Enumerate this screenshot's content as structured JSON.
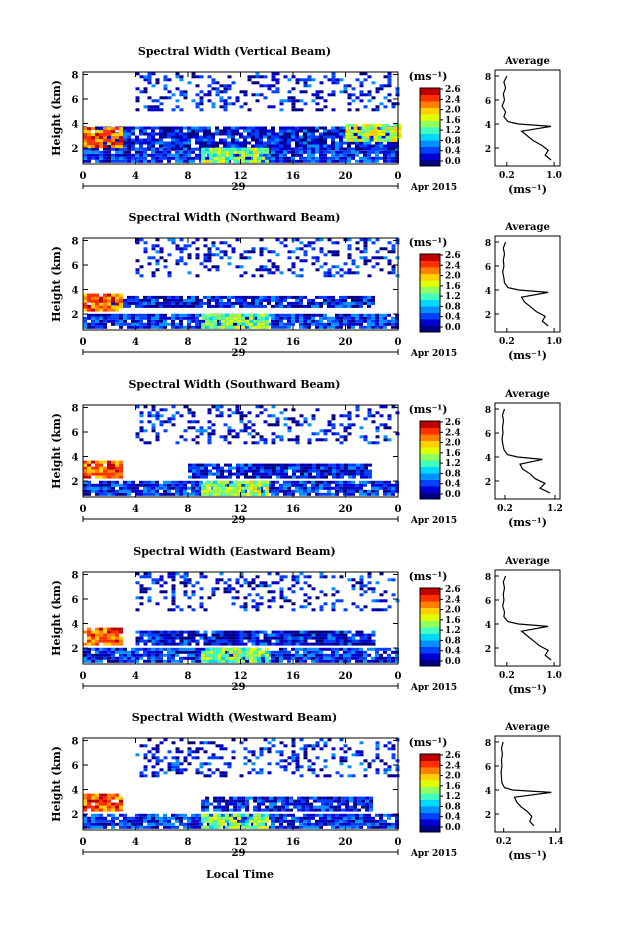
{
  "figure": {
    "xlabel": "Local Time",
    "date_label": "Apr 2015",
    "day_label": "29"
  },
  "colorbar": {
    "unit_label": "(ms⁻¹)",
    "ticks": [
      "2.6",
      "2.4",
      "2.0",
      "1.6",
      "1.2",
      "0.8",
      "0.4",
      "0.0"
    ],
    "colors": [
      "#000080",
      "#0000d0",
      "#0040ff",
      "#0090ff",
      "#00d8ff",
      "#40ffc0",
      "#90ff60",
      "#e0ff00",
      "#ffd000",
      "#ff8000",
      "#ff3000",
      "#c00000"
    ]
  },
  "chart_data": [
    {
      "type": "heatmap",
      "title": "Spectral Width (Vertical Beam)",
      "ylabel": "Height (km)",
      "xticks": [
        "0",
        "4",
        "8",
        "12",
        "16",
        "20",
        "0"
      ],
      "yticks": [
        "2",
        "4",
        "6",
        "8"
      ],
      "xlim": [
        0,
        24
      ],
      "ylim": [
        0.7,
        8.2
      ],
      "layers": [
        {
          "t0": 0,
          "t1": 24,
          "z0": 0.8,
          "z1": 1.8,
          "v": 0.4
        },
        {
          "t0": 0,
          "t1": 24,
          "z0": 1.8,
          "z1": 3.6,
          "v": 0.3
        },
        {
          "t0": 9,
          "t1": 14,
          "z0": 0.8,
          "z1": 1.8,
          "v": 1.4
        },
        {
          "t0": 0,
          "t1": 3,
          "z0": 2.0,
          "z1": 3.5,
          "v": 2.2
        },
        {
          "t0": 20,
          "t1": 24,
          "z0": 2.5,
          "z1": 3.8,
          "v": 1.6
        },
        {
          "t0": 4,
          "t1": 24,
          "z0": 5.0,
          "z1": 8.0,
          "v": 0.3,
          "sparse": true
        }
      ],
      "avg_profile": {
        "xticks": [
          "0.2",
          "1.0"
        ],
        "xlim": [
          0,
          1.1
        ],
        "yticks": [
          "2",
          "4",
          "6",
          "8"
        ],
        "height": [
          1.0,
          1.4,
          1.8,
          2.2,
          2.6,
          3.0,
          3.4,
          3.8,
          4.0,
          4.2,
          4.6,
          5.0,
          5.5,
          6.0,
          6.5,
          7.0,
          7.5,
          8.0
        ],
        "value": [
          0.95,
          0.85,
          0.9,
          0.8,
          0.65,
          0.55,
          0.45,
          0.95,
          0.4,
          0.22,
          0.15,
          0.18,
          0.12,
          0.16,
          0.14,
          0.18,
          0.15,
          0.2
        ]
      }
    },
    {
      "type": "heatmap",
      "title": "Spectral Width (Northward Beam)",
      "ylabel": "Height (km)",
      "xticks": [
        "0",
        "4",
        "8",
        "12",
        "16",
        "20",
        "0"
      ],
      "yticks": [
        "2",
        "4",
        "6",
        "8"
      ],
      "xlim": [
        0,
        24
      ],
      "ylim": [
        0.7,
        8.2
      ],
      "layers": [
        {
          "t0": 0,
          "t1": 24,
          "z0": 0.8,
          "z1": 1.8,
          "v": 0.4
        },
        {
          "t0": 0,
          "t1": 22,
          "z0": 2.5,
          "z1": 3.4,
          "v": 0.3
        },
        {
          "t0": 9,
          "t1": 14,
          "z0": 0.8,
          "z1": 1.8,
          "v": 1.4
        },
        {
          "t0": 0,
          "t1": 3,
          "z0": 2.2,
          "z1": 3.5,
          "v": 2.2
        },
        {
          "t0": 4,
          "t1": 24,
          "z0": 5.0,
          "z1": 8.0,
          "v": 0.3,
          "sparse": true
        }
      ],
      "avg_profile": {
        "xticks": [
          "0.2",
          "1.0"
        ],
        "xlim": [
          0,
          1.1
        ],
        "yticks": [
          "2",
          "4",
          "6",
          "8"
        ],
        "height": [
          1.0,
          1.4,
          1.8,
          2.2,
          2.6,
          3.0,
          3.4,
          3.8,
          4.0,
          4.2,
          4.6,
          5.0,
          5.5,
          6.0,
          6.5,
          7.0,
          7.5,
          8.0
        ],
        "value": [
          0.9,
          0.8,
          0.85,
          0.7,
          0.6,
          0.5,
          0.45,
          0.9,
          0.4,
          0.22,
          0.16,
          0.15,
          0.13,
          0.15,
          0.14,
          0.16,
          0.14,
          0.18
        ]
      }
    },
    {
      "type": "heatmap",
      "title": "Spectral Width (Southward Beam)",
      "ylabel": "Height (km)",
      "xticks": [
        "0",
        "4",
        "8",
        "12",
        "16",
        "20",
        "0"
      ],
      "yticks": [
        "2",
        "4",
        "6",
        "8"
      ],
      "xlim": [
        0,
        24
      ],
      "ylim": [
        0.7,
        8.2
      ],
      "layers": [
        {
          "t0": 0,
          "t1": 24,
          "z0": 0.8,
          "z1": 1.8,
          "v": 0.4
        },
        {
          "t0": 8,
          "t1": 22,
          "z0": 2.2,
          "z1": 3.4,
          "v": 0.3
        },
        {
          "t0": 9,
          "t1": 14,
          "z0": 0.8,
          "z1": 1.8,
          "v": 1.4
        },
        {
          "t0": 0,
          "t1": 3,
          "z0": 2.2,
          "z1": 3.5,
          "v": 2.2
        },
        {
          "t0": 4,
          "t1": 24,
          "z0": 5.0,
          "z1": 8.0,
          "v": 0.3,
          "sparse": true
        }
      ],
      "avg_profile": {
        "xticks": [
          "0.2",
          "1.2"
        ],
        "xlim": [
          0,
          1.3
        ],
        "yticks": [
          "2",
          "4",
          "6",
          "8"
        ],
        "height": [
          1.0,
          1.4,
          1.8,
          2.2,
          2.6,
          3.0,
          3.4,
          3.8,
          4.0,
          4.2,
          4.6,
          5.0,
          5.5,
          6.0,
          6.5,
          7.0,
          7.5,
          8.0
        ],
        "value": [
          1.1,
          0.9,
          1.0,
          0.8,
          0.7,
          0.55,
          0.5,
          0.95,
          0.45,
          0.25,
          0.18,
          0.16,
          0.14,
          0.16,
          0.15,
          0.17,
          0.15,
          0.19
        ]
      }
    },
    {
      "type": "heatmap",
      "title": "Spectral Width (Eastward Beam)",
      "ylabel": "Height (km)",
      "xticks": [
        "0",
        "4",
        "8",
        "12",
        "16",
        "20",
        "0"
      ],
      "yticks": [
        "2",
        "4",
        "6",
        "8"
      ],
      "xlim": [
        0,
        24
      ],
      "ylim": [
        0.7,
        8.2
      ],
      "layers": [
        {
          "t0": 0,
          "t1": 24,
          "z0": 0.8,
          "z1": 1.8,
          "v": 0.4
        },
        {
          "t0": 4,
          "t1": 22,
          "z0": 2.2,
          "z1": 3.4,
          "v": 0.3
        },
        {
          "t0": 9,
          "t1": 14,
          "z0": 0.8,
          "z1": 1.8,
          "v": 1.4
        },
        {
          "t0": 0,
          "t1": 3,
          "z0": 2.2,
          "z1": 3.5,
          "v": 2.2
        },
        {
          "t0": 4,
          "t1": 24,
          "z0": 5.0,
          "z1": 8.0,
          "v": 0.3,
          "sparse": true
        }
      ],
      "avg_profile": {
        "xticks": [
          "0.2",
          "1.0"
        ],
        "xlim": [
          0,
          1.1
        ],
        "yticks": [
          "2",
          "4",
          "6",
          "8"
        ],
        "height": [
          1.0,
          1.4,
          1.8,
          2.2,
          2.6,
          3.0,
          3.4,
          3.8,
          4.0,
          4.2,
          4.6,
          5.0,
          5.5,
          6.0,
          6.5,
          7.0,
          7.5,
          8.0
        ],
        "value": [
          0.95,
          0.85,
          0.9,
          0.75,
          0.65,
          0.55,
          0.45,
          0.9,
          0.4,
          0.22,
          0.15,
          0.16,
          0.13,
          0.15,
          0.14,
          0.16,
          0.14,
          0.18
        ]
      }
    },
    {
      "type": "heatmap",
      "title": "Spectral Width (Westward Beam)",
      "ylabel": "Height (km)",
      "xticks": [
        "0",
        "4",
        "8",
        "12",
        "16",
        "20",
        "0"
      ],
      "yticks": [
        "2",
        "4",
        "6",
        "8"
      ],
      "xlim": [
        0,
        24
      ],
      "ylim": [
        0.7,
        8.2
      ],
      "layers": [
        {
          "t0": 0,
          "t1": 24,
          "z0": 0.8,
          "z1": 1.8,
          "v": 0.4
        },
        {
          "t0": 9,
          "t1": 22,
          "z0": 2.2,
          "z1": 3.4,
          "v": 0.3
        },
        {
          "t0": 9,
          "t1": 14,
          "z0": 0.8,
          "z1": 1.8,
          "v": 1.4
        },
        {
          "t0": 0,
          "t1": 3,
          "z0": 2.2,
          "z1": 3.5,
          "v": 2.2
        },
        {
          "t0": 4,
          "t1": 24,
          "z0": 5.0,
          "z1": 8.0,
          "v": 0.3,
          "sparse": true
        }
      ],
      "avg_profile": {
        "xticks": [
          "0.2",
          "1.4"
        ],
        "xlim": [
          0,
          1.5
        ],
        "yticks": [
          "2",
          "4",
          "6",
          "8"
        ],
        "height": [
          1.0,
          1.4,
          1.8,
          2.2,
          2.6,
          3.0,
          3.4,
          3.8,
          4.0,
          4.2,
          4.6,
          5.0,
          5.5,
          6.0,
          6.5,
          7.0,
          7.5,
          8.0
        ],
        "value": [
          0.9,
          0.8,
          0.85,
          0.75,
          0.6,
          0.5,
          0.45,
          1.3,
          0.4,
          0.22,
          0.16,
          0.15,
          0.14,
          0.16,
          0.15,
          0.17,
          0.15,
          0.19
        ]
      }
    }
  ]
}
